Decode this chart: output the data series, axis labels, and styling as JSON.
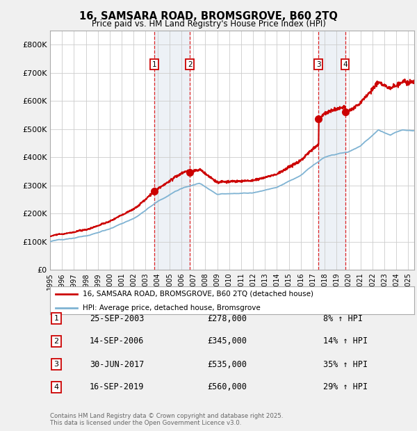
{
  "title": "16, SAMSARA ROAD, BROMSGROVE, B60 2TQ",
  "subtitle": "Price paid vs. HM Land Registry's House Price Index (HPI)",
  "legend_line1": "16, SAMSARA ROAD, BROMSGROVE, B60 2TQ (detached house)",
  "legend_line2": "HPI: Average price, detached house, Bromsgrove",
  "footer_line1": "Contains HM Land Registry data © Crown copyright and database right 2025.",
  "footer_line2": "This data is licensed under the Open Government Licence v3.0.",
  "sale_color": "#cc0000",
  "hpi_color": "#7fb3d3",
  "background_color": "#f0f0f0",
  "plot_bg_color": "#ffffff",
  "grid_color": "#cccccc",
  "highlight_bg": "#ccd9e8",
  "ylim": [
    0,
    850000
  ],
  "yticks": [
    0,
    100000,
    200000,
    300000,
    400000,
    500000,
    600000,
    700000,
    800000
  ],
  "ytick_labels": [
    "£0",
    "£100K",
    "£200K",
    "£300K",
    "£400K",
    "£500K",
    "£600K",
    "£700K",
    "£800K"
  ],
  "sales": [
    {
      "label": "1",
      "date_num": 2003.73,
      "price": 278000,
      "pct": "8%",
      "date_str": "25-SEP-2003"
    },
    {
      "label": "2",
      "date_num": 2006.71,
      "price": 345000,
      "pct": "14%",
      "date_str": "14-SEP-2006"
    },
    {
      "label": "3",
      "date_num": 2017.49,
      "price": 535000,
      "pct": "35%",
      "date_str": "30-JUN-2017"
    },
    {
      "label": "4",
      "date_num": 2019.71,
      "price": 560000,
      "pct": "29%",
      "date_str": "16-SEP-2019"
    }
  ],
  "xmin": 1995.0,
  "xmax": 2025.5,
  "table_data": [
    [
      "1",
      "25-SEP-2003",
      "£278,000",
      "8% ↑ HPI"
    ],
    [
      "2",
      "14-SEP-2006",
      "£345,000",
      "14% ↑ HPI"
    ],
    [
      "3",
      "30-JUN-2017",
      "£535,000",
      "35% ↑ HPI"
    ],
    [
      "4",
      "16-SEP-2019",
      "£560,000",
      "29% ↑ HPI"
    ]
  ]
}
